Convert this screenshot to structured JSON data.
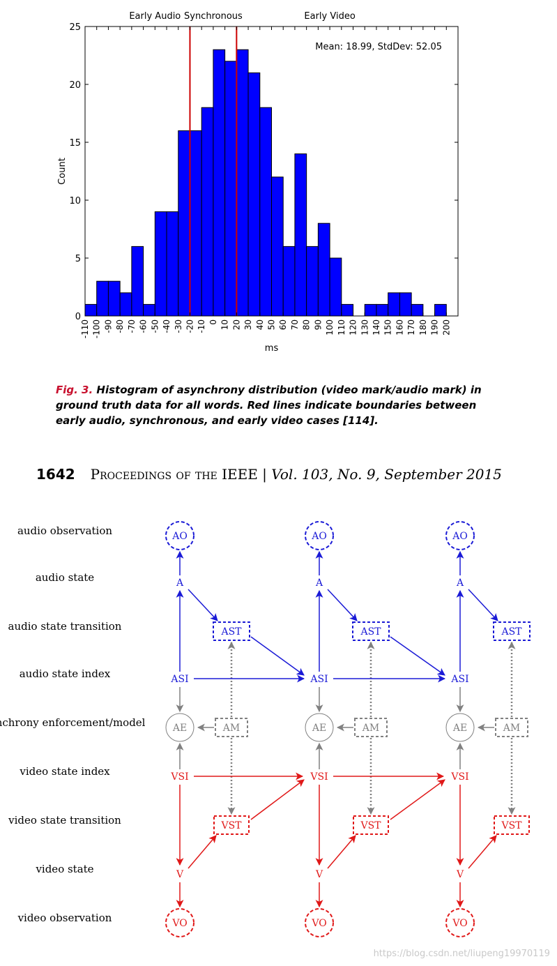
{
  "chart_data": {
    "type": "bar",
    "xlabel": "ms",
    "ylabel": "Count",
    "ylim": [
      0,
      25
    ],
    "yticks": [
      0,
      5,
      10,
      15,
      20,
      25
    ],
    "xlim": [
      -110,
      210
    ],
    "xticks": [
      -110,
      -100,
      -90,
      -80,
      -70,
      -60,
      -50,
      -40,
      -30,
      -20,
      -10,
      0,
      10,
      20,
      30,
      40,
      50,
      60,
      70,
      80,
      90,
      100,
      110,
      120,
      130,
      140,
      150,
      160,
      170,
      180,
      190,
      200
    ],
    "bin_width": 10,
    "bins": [
      -110,
      -100,
      -90,
      -80,
      -70,
      -60,
      -50,
      -40,
      -30,
      -20,
      -10,
      0,
      10,
      20,
      30,
      40,
      50,
      60,
      70,
      80,
      90,
      100,
      110,
      120,
      130,
      140,
      150,
      160,
      170,
      180,
      190,
      200
    ],
    "values": [
      1,
      3,
      3,
      2,
      6,
      1,
      9,
      9,
      16,
      16,
      18,
      23,
      22,
      23,
      21,
      18,
      12,
      6,
      14,
      6,
      8,
      5,
      1,
      0,
      1,
      1,
      2,
      2,
      1,
      0,
      1,
      0
    ],
    "bar_color": "#0000ff",
    "boundary_color": "#cc0000",
    "boundaries": [
      -20,
      20
    ],
    "annotation": "Mean: 18.99, StdDev: 52.05",
    "region_labels": [
      {
        "text": "Early Audio",
        "x": -50
      },
      {
        "text": "Synchronous",
        "x": 0
      },
      {
        "text": "Early Video",
        "x": 100
      }
    ]
  },
  "caption": {
    "label": "Fig. 3.",
    "text": "Histogram of asynchrony distribution (video mark/audio mark) in ground truth data for all words. Red lines indicate boundaries between early audio, synchronous, and early video cases [114]."
  },
  "footer": {
    "page": "1642",
    "journal": "Proceedings of the IEEE",
    "separator": "|",
    "volume": "Vol. 103, No. 9, September 2015"
  },
  "diagram": {
    "row_labels": [
      "audio observation",
      "audio state",
      "audio state transition",
      "audio state index",
      "synchrony enforcement/model",
      "video state index",
      "video state transition",
      "video state",
      "video observation"
    ],
    "nodes": {
      "ao": "AO",
      "a": "A",
      "ast": "AST",
      "asi": "ASI",
      "ae": "AE",
      "am": "AM",
      "vsi": "VSI",
      "vst": "VST",
      "v": "V",
      "vo": "VO"
    },
    "columns": 3,
    "colors": {
      "audio": "#1a1ad6",
      "video": "#e01818",
      "sync": "#808080"
    }
  },
  "watermark": "https://blog.csdn.net/liupeng19970119"
}
